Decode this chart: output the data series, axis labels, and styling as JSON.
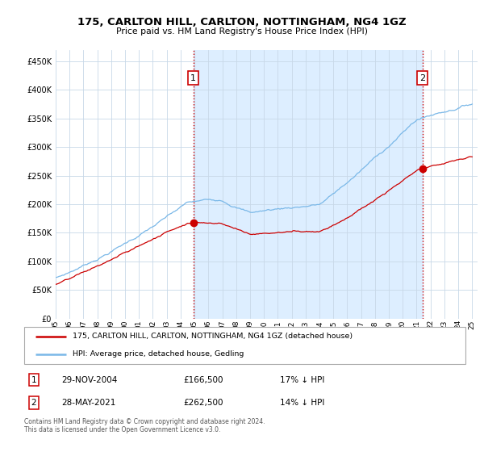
{
  "title": "175, CARLTON HILL, CARLTON, NOTTINGHAM, NG4 1GZ",
  "subtitle": "Price paid vs. HM Land Registry's House Price Index (HPI)",
  "legend_line1": "175, CARLTON HILL, CARLTON, NOTTINGHAM, NG4 1GZ (detached house)",
  "legend_line2": "HPI: Average price, detached house, Gedling",
  "annotation1_label": "1",
  "annotation1_date": "29-NOV-2004",
  "annotation1_price": "£166,500",
  "annotation1_hpi": "17% ↓ HPI",
  "annotation2_label": "2",
  "annotation2_date": "28-MAY-2021",
  "annotation2_price": "£262,500",
  "annotation2_hpi": "14% ↓ HPI",
  "footer": "Contains HM Land Registry data © Crown copyright and database right 2024.\nThis data is licensed under the Open Government Licence v3.0.",
  "hpi_color": "#7ab8e8",
  "price_color": "#cc0000",
  "annotation_box_color": "#cc0000",
  "background_color": "#ffffff",
  "fill_color": "#ddeeff",
  "grid_color": "#c8d8e8",
  "ylim": [
    0,
    470000
  ],
  "yticks": [
    0,
    50000,
    100000,
    150000,
    200000,
    250000,
    300000,
    350000,
    400000,
    450000
  ],
  "sale1_year": 2004.92,
  "sale2_year": 2021.42,
  "sale1_price": 166500,
  "sale2_price": 262500,
  "xstart": 1995,
  "xend": 2025
}
